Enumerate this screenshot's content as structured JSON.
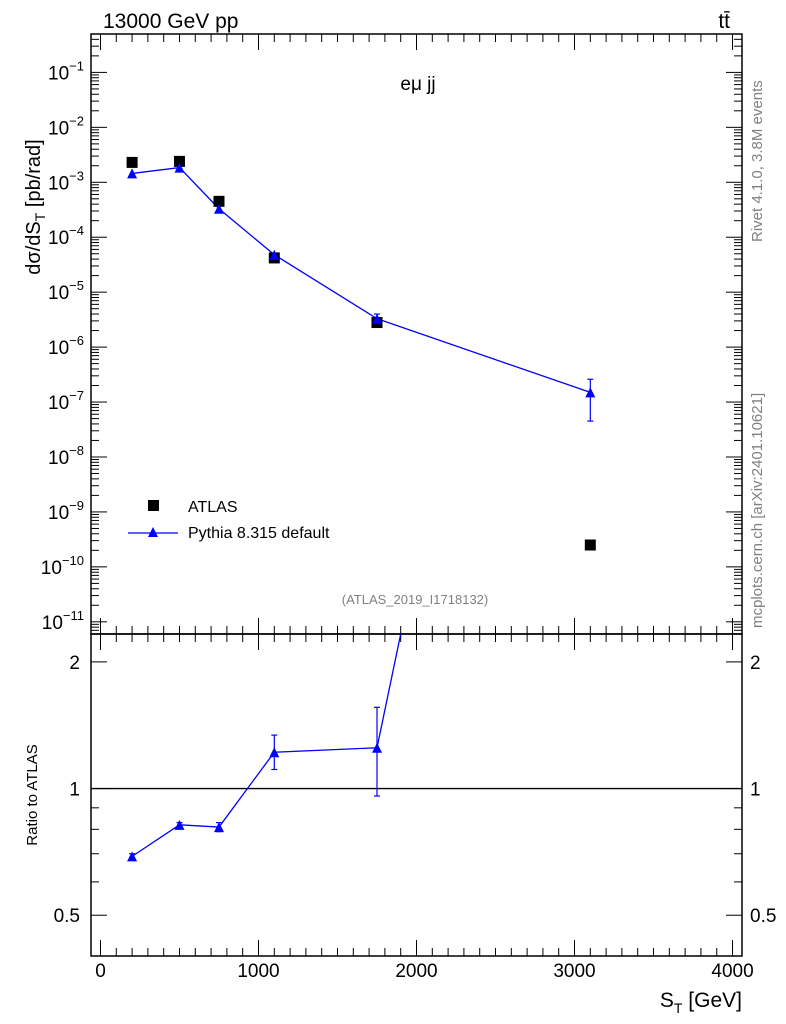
{
  "header": {
    "left": "13000 GeV pp",
    "right": "tt̄"
  },
  "side_labels": {
    "rivet": "Rivet 4.1.0,  3.8M events",
    "source": "mcplots.cern.ch [arXiv:2401.10621]"
  },
  "chart_data": [
    {
      "type": "scatter",
      "panel": "main",
      "title": "eμ jj",
      "watermark": "(ATLAS_2019_I1718132)",
      "ylabel": "dσ/dS_T [pb/rad]",
      "yscale": "log",
      "ylim": [
        6e-12,
        0.5
      ],
      "xlim": [
        -60,
        4060
      ],
      "ytick_labels": [
        "10^-11",
        "10^-10",
        "10^-9",
        "10^-8",
        "10^-7",
        "10^-6",
        "10^-5",
        "10^-4",
        "10^-3",
        "10^-2",
        "10^-1"
      ],
      "legend": {
        "position": "bottom-left",
        "entries": [
          "ATLAS",
          "Pythia 8.315 default"
        ]
      },
      "series": [
        {
          "name": "ATLAS",
          "marker": "square",
          "color": "#000000",
          "x": [
            200,
            500,
            750,
            1100,
            1750,
            3100
          ],
          "y": [
            0.0023,
            0.0024,
            0.00045,
            4.2e-05,
            2.8e-06,
            2.5e-10
          ]
        },
        {
          "name": "Pythia 8.315 default",
          "marker": "triangle",
          "color": "#0000ff",
          "x": [
            200,
            500,
            750,
            1100,
            1750,
            3100
          ],
          "y": [
            0.00145,
            0.00185,
            0.00033,
            4.8e-05,
            3.3e-06,
            1.5e-07
          ],
          "yerr_low": [
            0.0014,
            0.0018,
            0.00031,
            4.4e-05,
            2.7e-06,
            4.5e-08
          ],
          "yerr_high": [
            0.0015,
            0.0019,
            0.00035,
            5.2e-05,
            4e-06,
            2.6e-07
          ]
        }
      ]
    },
    {
      "type": "line",
      "panel": "ratio",
      "ylabel": "Ratio to ATLAS",
      "xlabel": "S_T [GeV]",
      "yscale": "log",
      "ylim": [
        0.4,
        2.33
      ],
      "xlim": [
        -60,
        4060
      ],
      "xtick_labels": [
        "0",
        "1000",
        "2000",
        "3000",
        "4000"
      ],
      "ytick_labels": [
        "0.5",
        "1",
        "2"
      ],
      "reference_line": 1,
      "series": [
        {
          "name": "Pythia 8.315 default",
          "color": "#0000ff",
          "x": [
            200,
            500,
            750,
            1100,
            1750
          ],
          "y": [
            0.69,
            0.82,
            0.81,
            1.22,
            1.25
          ],
          "yerr_low": [
            0.68,
            0.81,
            0.79,
            1.11,
            0.96
          ],
          "yerr_high": [
            0.7,
            0.83,
            0.83,
            1.34,
            1.56
          ],
          "exit_to": {
            "x": 1900,
            "y": 2.33
          }
        }
      ]
    }
  ]
}
